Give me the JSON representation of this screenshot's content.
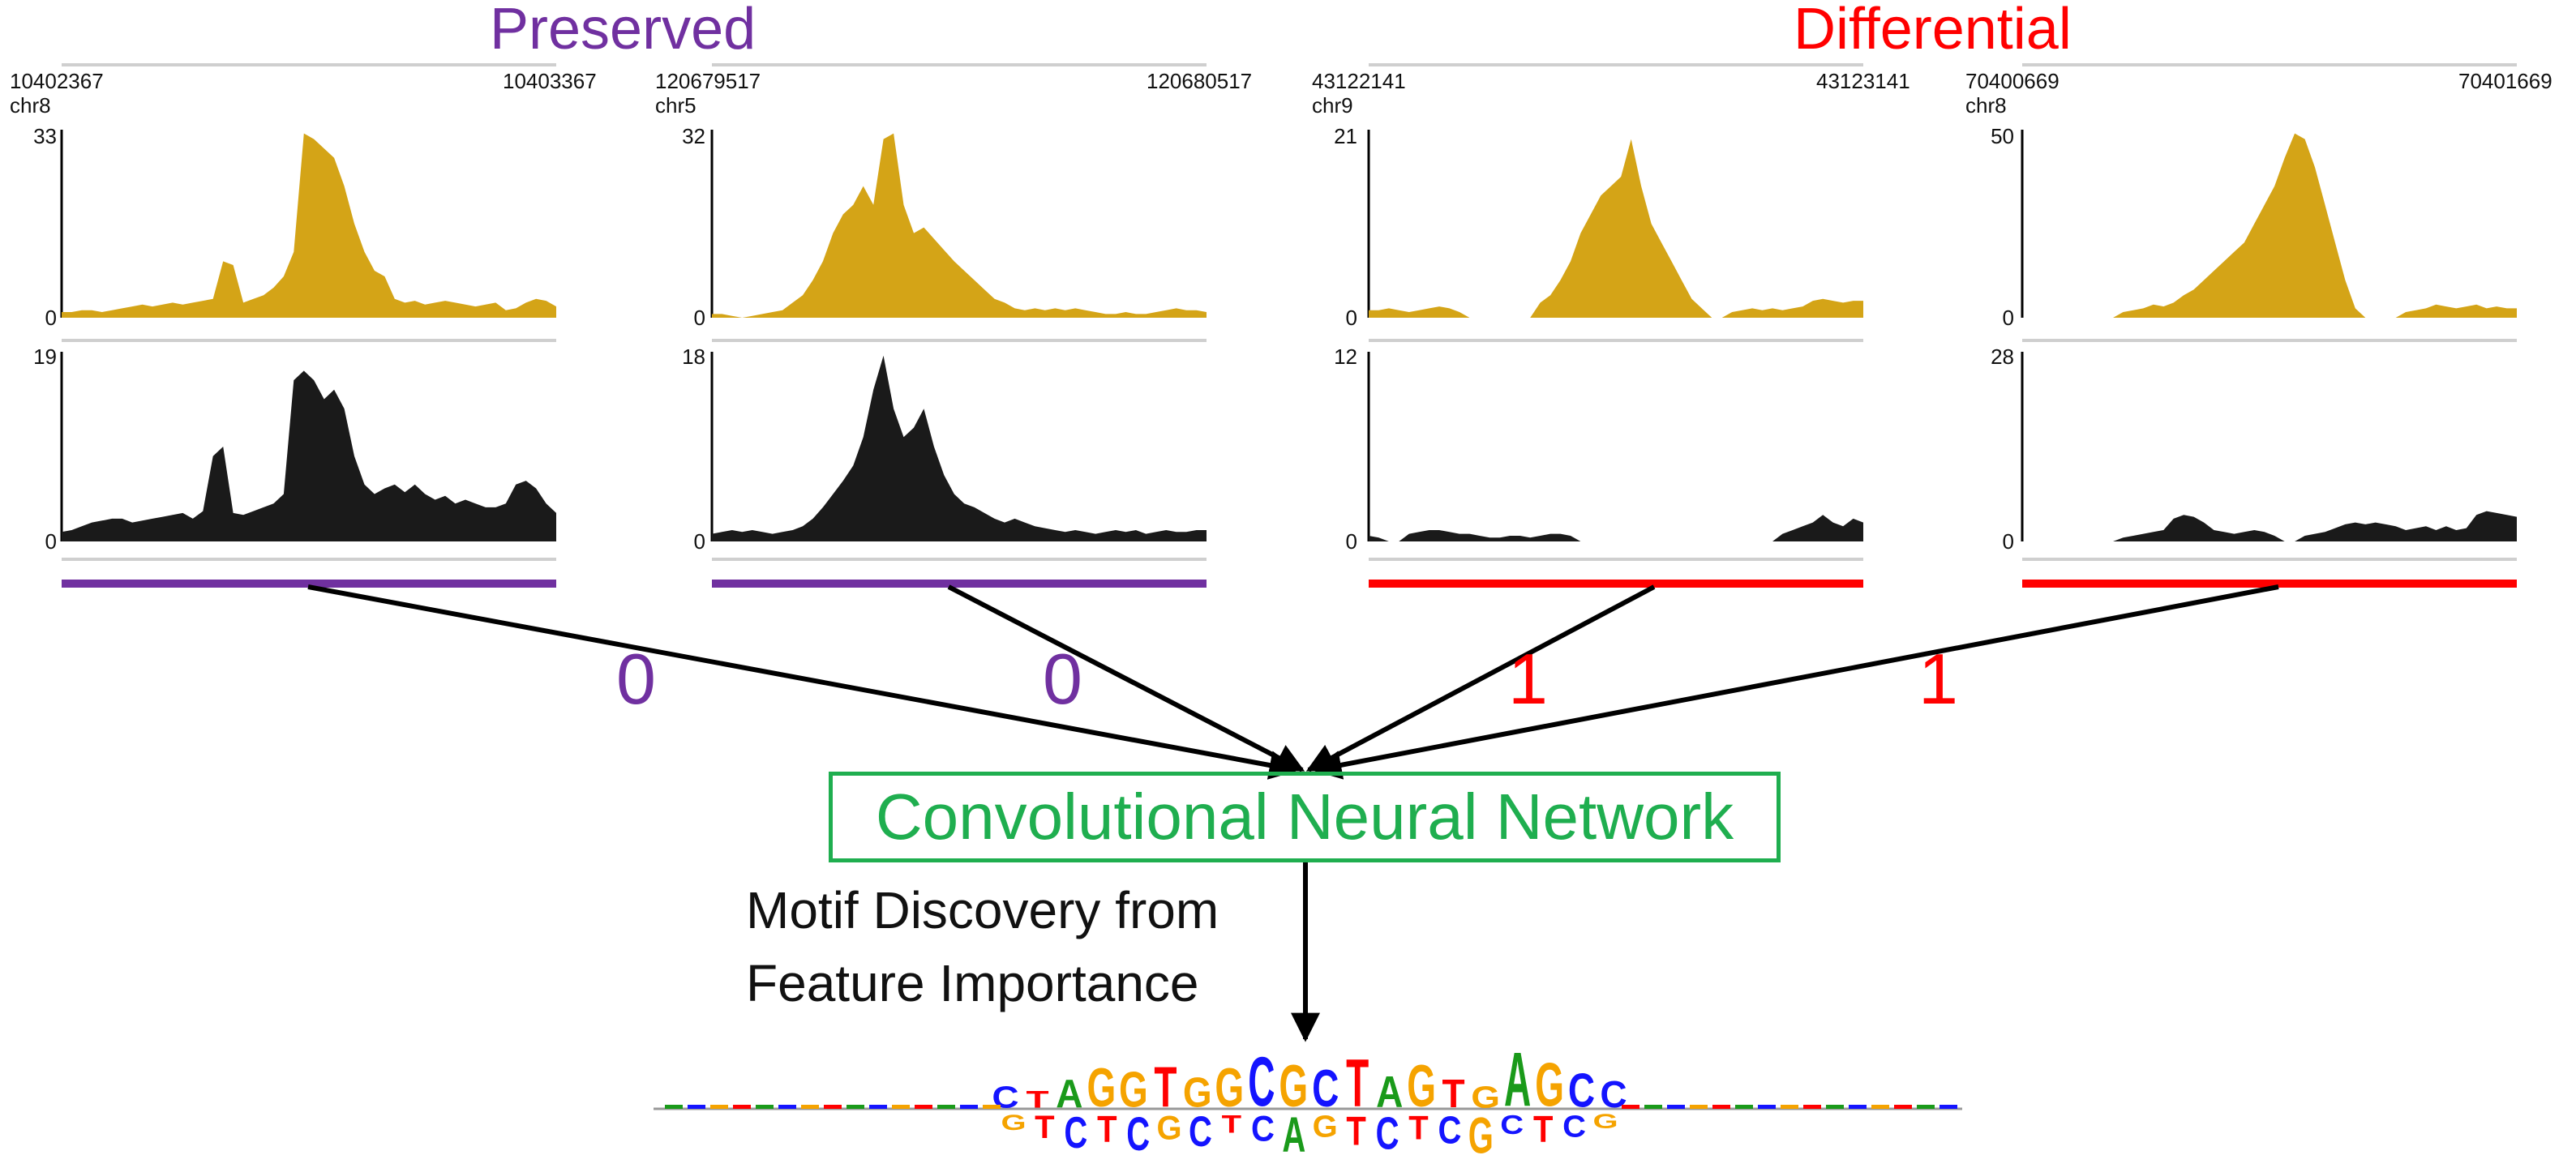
{
  "groups": [
    {
      "title": "Preserved",
      "color": "#7030a0"
    },
    {
      "title": "Differential",
      "color": "#ff0000"
    }
  ],
  "panels": [
    {
      "start": "10402367",
      "end": "10403367",
      "chrom": "chr8",
      "group": 0,
      "label": "0",
      "top_max": "33",
      "top_min": "0",
      "bottom_max": "19",
      "bottom_min": "0"
    },
    {
      "start": "120679517",
      "end": "120680517",
      "chrom": "chr5",
      "group": 0,
      "label": "0",
      "top_max": "32",
      "top_min": "0",
      "bottom_max": "18",
      "bottom_min": "0"
    },
    {
      "start": "43122141",
      "end": "43123141",
      "chrom": "chr9",
      "group": 1,
      "label": "1",
      "top_max": "21",
      "top_min": "0",
      "bottom_max": "12",
      "bottom_min": "0"
    },
    {
      "start": "70400669",
      "end": "70401669",
      "chrom": "chr8",
      "group": 1,
      "label": "1",
      "top_max": "50",
      "top_min": "0",
      "bottom_max": "28",
      "bottom_min": "0"
    }
  ],
  "track_colors": {
    "top": "#d4a417",
    "bottom": "#1a1a1a"
  },
  "network": {
    "label": "Convolutional Neural Network",
    "color": "#1fae4f"
  },
  "motif_caption": {
    "line1": "Motif Discovery from",
    "line2": "Feature Importance"
  },
  "motif_colors": {
    "A": "#1a9a1a",
    "C": "#1414ff",
    "G": "#f5a300",
    "T": "#ff0000"
  },
  "motif_letters_top": "CTAGGTGGCGCTAGTGAGCC",
  "motif_letters_bottom": "GTCTCGCTCAGTCTCGCTCG"
}
